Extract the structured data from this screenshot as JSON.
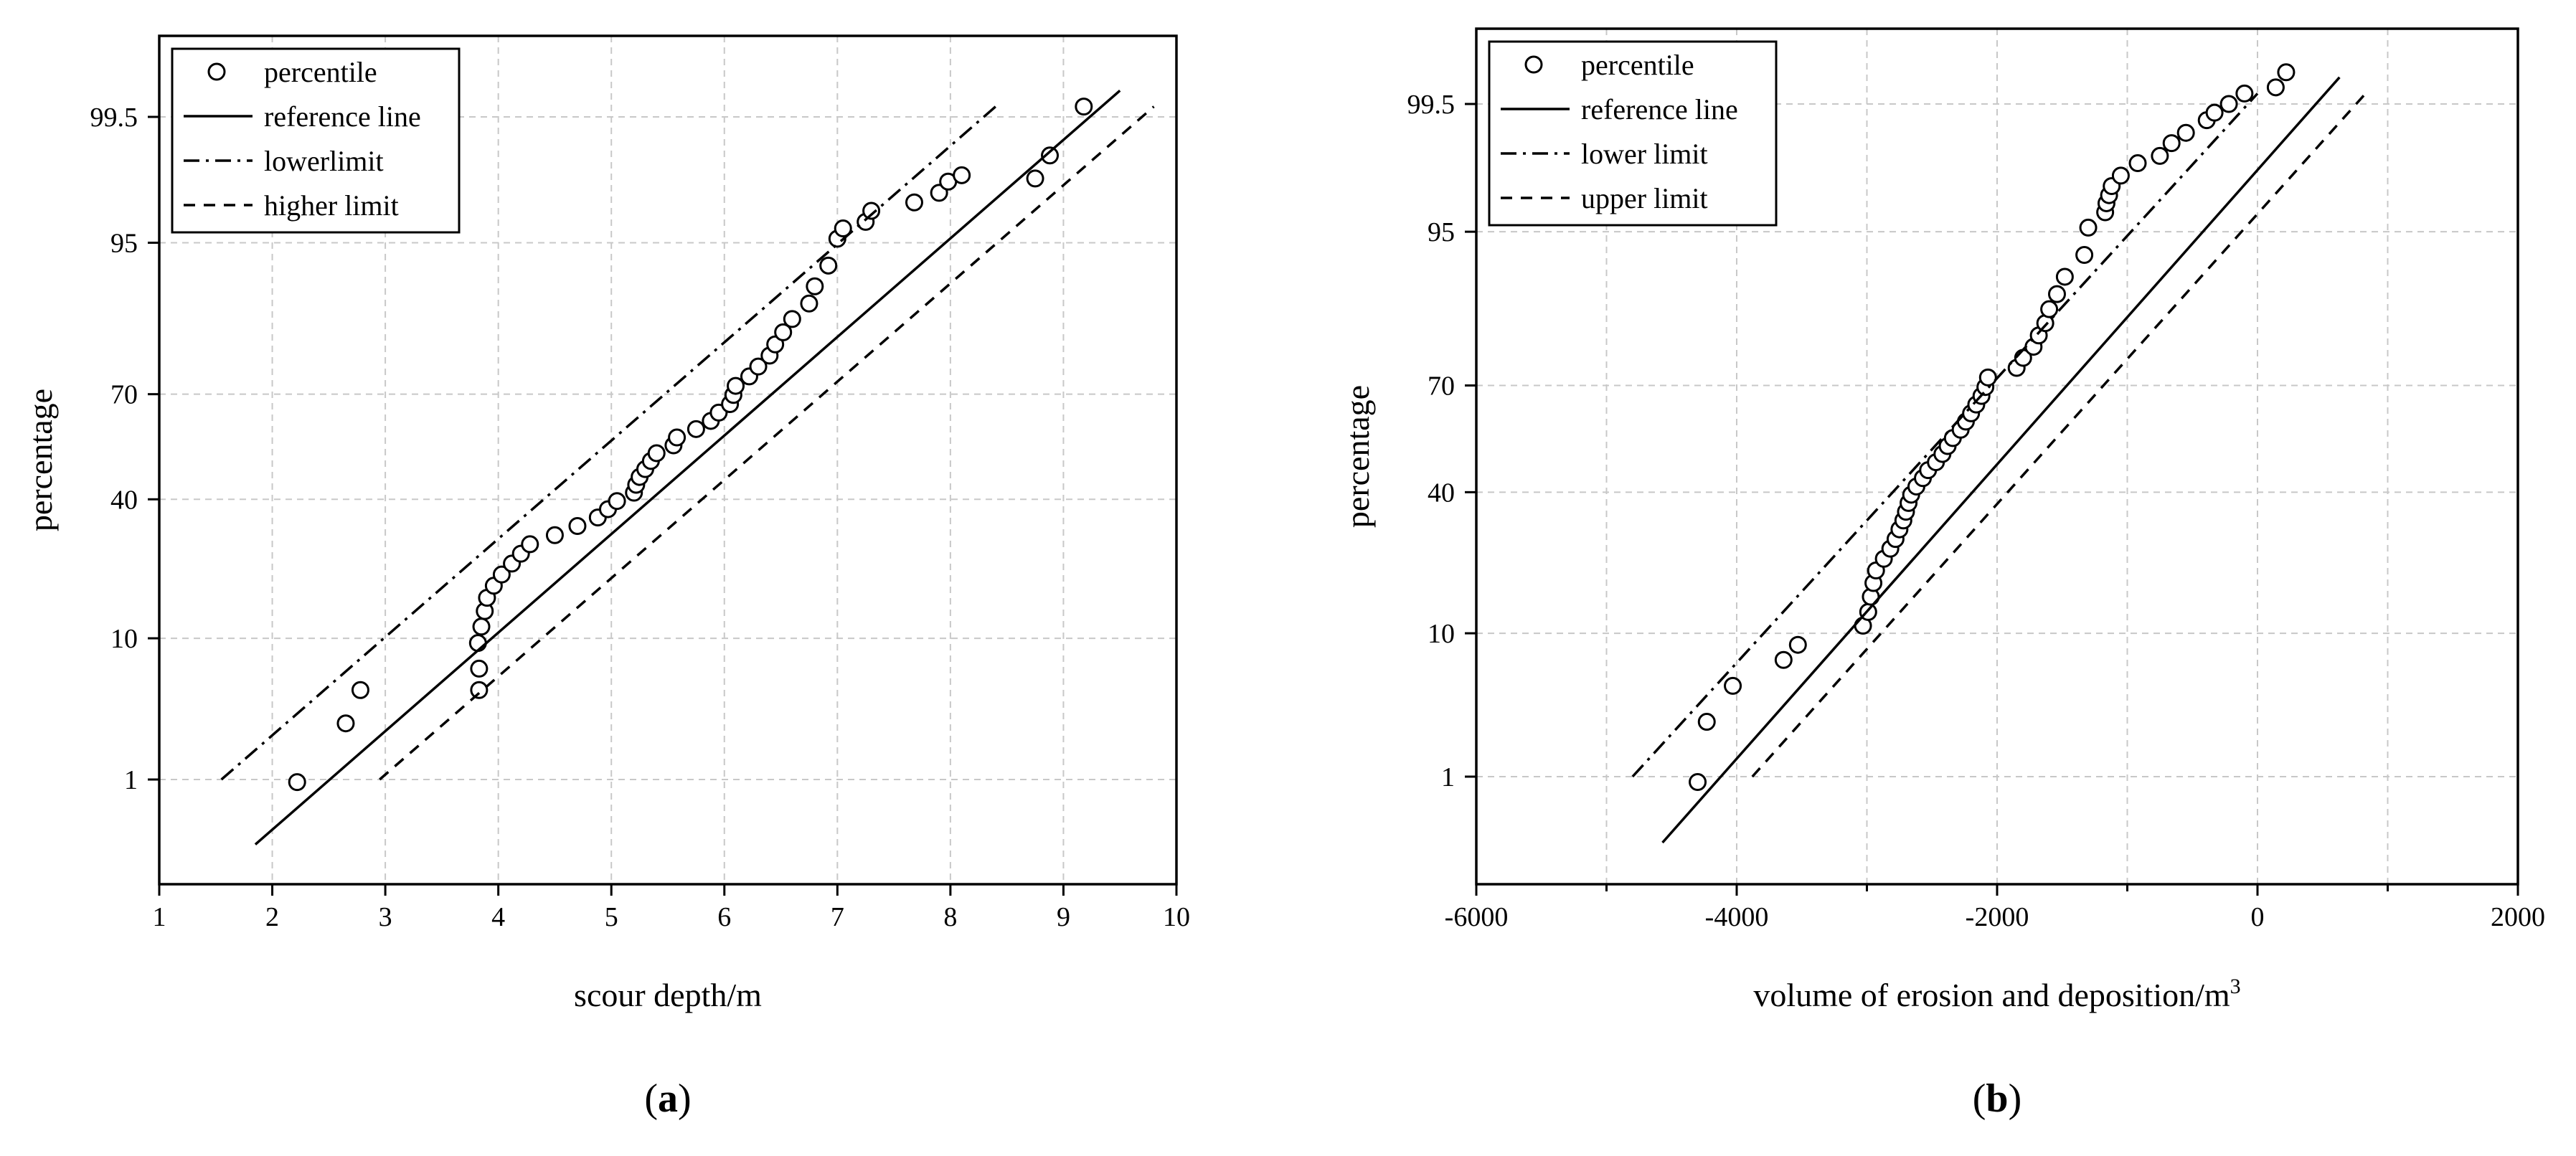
{
  "chart_data": [
    {
      "panel_label": "a",
      "type": "scatter",
      "plot_kind": "normal probability plot",
      "xlabel": "scour depth/m",
      "ylabel": "percentage",
      "xlim": [
        1,
        10
      ],
      "x_ticks": [
        1,
        2,
        3,
        4,
        5,
        6,
        7,
        8,
        9,
        10
      ],
      "y_ticks": [
        1,
        10,
        40,
        70,
        95,
        99.5
      ],
      "grid": true,
      "legend_position": "top-left",
      "legend": [
        {
          "label": "percentile",
          "style": "circle"
        },
        {
          "label": "reference line",
          "style": "solid"
        },
        {
          "label": "lowerlimit",
          "style": "dashdot"
        },
        {
          "label": "higher limit",
          "style": "dashed"
        }
      ],
      "series": [
        {
          "name": "percentile",
          "kind": "points",
          "x": [
            2.22,
            2.65,
            2.78,
            3.83,
            3.83,
            3.82,
            3.85,
            3.88,
            3.9,
            3.96,
            4.03,
            4.12,
            4.2,
            4.28,
            4.5,
            4.7,
            4.88,
            4.97,
            5.05,
            5.2,
            5.22,
            5.25,
            5.3,
            5.35,
            5.4,
            5.55,
            5.58,
            5.75,
            5.88,
            5.95,
            6.05,
            6.08,
            6.1,
            6.22,
            6.3,
            6.4,
            6.45,
            6.52,
            6.6,
            6.75,
            6.8,
            6.92,
            7.0,
            7.05,
            7.25,
            7.3,
            7.68,
            7.9,
            7.98,
            8.1,
            8.75,
            8.88,
            9.18
          ],
          "y": [
            0.95,
            2.8,
            4.8,
            4.8,
            6.6,
            9.4,
            11.6,
            14.0,
            16.3,
            18.6,
            20.9,
            23.3,
            25.6,
            27.9,
            30.2,
            32.6,
            34.9,
            37.2,
            39.5,
            41.9,
            44.2,
            46.5,
            48.8,
            51.2,
            53.5,
            55.8,
            58.1,
            60.5,
            62.8,
            65.1,
            67.4,
            69.8,
            72.1,
            74.4,
            76.7,
            79.1,
            81.4,
            83.7,
            86.0,
            88.4,
            90.7,
            93.0,
            95.3,
            96.0,
            96.4,
            97.0,
            97.4,
            97.8,
            98.2,
            98.4,
            98.3,
            98.9,
            99.6
          ]
        },
        {
          "name": "reference line",
          "kind": "line",
          "x": [
            1.85,
            9.5
          ],
          "y": [
            0.25,
            99.72
          ]
        },
        {
          "name": "lowerlimit",
          "kind": "line",
          "x": [
            1.55,
            8.4
          ],
          "y": [
            1.0,
            99.6
          ]
        },
        {
          "name": "higher limit",
          "kind": "line",
          "x": [
            2.95,
            9.8
          ],
          "y": [
            1.0,
            99.6
          ]
        }
      ]
    },
    {
      "panel_label": "b",
      "type": "scatter",
      "plot_kind": "normal probability plot",
      "xlabel": "volume of erosion and deposition/m",
      "xlabel_superscript": "3",
      "ylabel": "percentage",
      "xlim": [
        -6000,
        2000
      ],
      "x_ticks": [
        -6000,
        -4000,
        -2000,
        0,
        2000
      ],
      "x_minor_ticks": [
        -5000,
        -3000,
        -1000,
        1000
      ],
      "y_ticks": [
        1,
        10,
        40,
        70,
        95,
        99.5
      ],
      "grid": true,
      "legend_position": "top-left",
      "legend": [
        {
          "label": "percentile",
          "style": "circle"
        },
        {
          "label": "reference line",
          "style": "solid"
        },
        {
          "label": "lower limit",
          "style": "dashdot"
        },
        {
          "label": "upper limit",
          "style": "dashed"
        }
      ],
      "series": [
        {
          "name": "percentile",
          "kind": "points",
          "x": [
            -4300,
            -4230,
            -4030,
            -3640,
            -3530,
            -3030,
            -2990,
            -2970,
            -2950,
            -2930,
            -2870,
            -2820,
            -2780,
            -2750,
            -2720,
            -2700,
            -2680,
            -2660,
            -2620,
            -2570,
            -2530,
            -2470,
            -2420,
            -2380,
            -2340,
            -2280,
            -2240,
            -2200,
            -2160,
            -2120,
            -2090,
            -2070,
            -1850,
            -1800,
            -1720,
            -1680,
            -1630,
            -1600,
            -1540,
            -1480,
            -1330,
            -1300,
            -1170,
            -1160,
            -1140,
            -1120,
            -1050,
            -920,
            -750,
            -660,
            -550,
            -390,
            -330,
            -220,
            -100,
            140,
            220
          ],
          "y": [
            0.9,
            2.7,
            4.8,
            7.0,
            8.6,
            11.0,
            13.0,
            15.5,
            18.0,
            20.5,
            23.0,
            25.3,
            27.6,
            30.0,
            32.3,
            34.6,
            37.0,
            39.3,
            41.6,
            44.0,
            46.3,
            48.6,
            51.0,
            53.3,
            55.6,
            58.0,
            60.3,
            62.6,
            65.0,
            67.3,
            69.6,
            72.0,
            74.3,
            76.6,
            79.0,
            81.3,
            83.6,
            86.0,
            88.3,
            90.6,
            93.0,
            95.3,
            96.3,
            96.8,
            97.2,
            97.6,
            98.0,
            98.4,
            98.6,
            98.9,
            99.1,
            99.3,
            99.4,
            99.5,
            99.6,
            99.65,
            99.75
          ],
          "x_extra_note": "shown as read off axes"
        },
        {
          "name": "reference line",
          "kind": "line",
          "x": [
            -4570,
            630
          ],
          "y": [
            0.25,
            99.72
          ]
        },
        {
          "name": "lower limit",
          "kind": "line",
          "x": [
            -4800,
            0
          ],
          "y": [
            1.0,
            99.6
          ]
        },
        {
          "name": "upper limit",
          "kind": "line",
          "x": [
            -3880,
            830
          ],
          "y": [
            1.0,
            99.6
          ]
        }
      ]
    }
  ]
}
